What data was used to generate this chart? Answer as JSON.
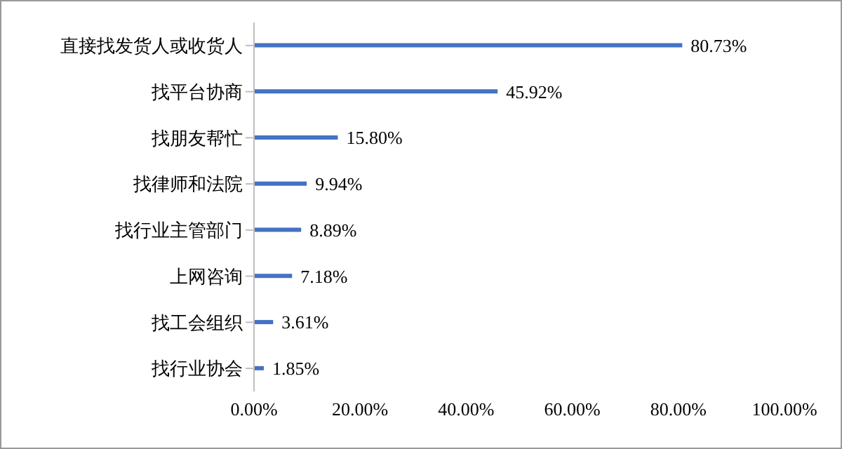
{
  "chart_data": {
    "type": "bar",
    "orientation": "horizontal",
    "categories": [
      "直接找发货人或收货人",
      "找平台协商",
      "找朋友帮忙",
      "找律师和法院",
      "找行业主管部门",
      "上网咨询",
      "找工会组织",
      "找行业协会"
    ],
    "values": [
      80.73,
      45.92,
      15.8,
      9.94,
      8.89,
      7.18,
      3.61,
      1.85
    ],
    "value_labels": [
      "80.73%",
      "45.92%",
      "15.80%",
      "9.94%",
      "8.89%",
      "7.18%",
      "3.61%",
      "1.85%"
    ],
    "color": "#4472c4",
    "xlim": [
      0,
      100
    ],
    "xticks": [
      {
        "value": 0,
        "label": "0.00%"
      },
      {
        "value": 20,
        "label": "20.00%"
      },
      {
        "value": 40,
        "label": "40.00%"
      },
      {
        "value": 60,
        "label": "60.00%"
      },
      {
        "value": 80,
        "label": "80.00%"
      },
      {
        "value": 100,
        "label": "100.00%"
      }
    ],
    "grid": false,
    "legend": false
  }
}
